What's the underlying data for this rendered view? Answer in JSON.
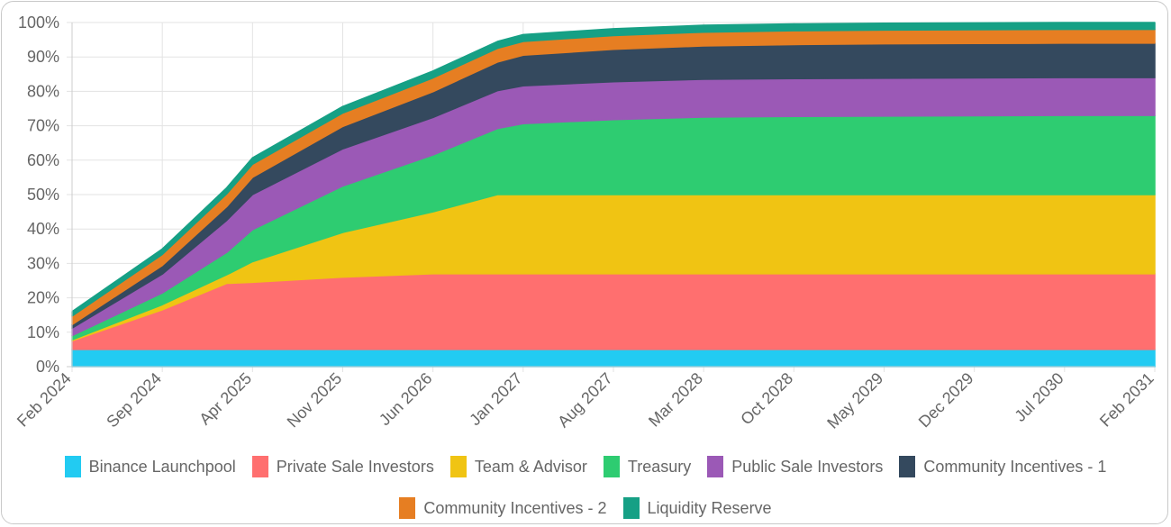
{
  "chart_data": {
    "type": "area",
    "stacked": true,
    "y_unit": "%",
    "ylim": [
      0,
      100
    ],
    "y_ticks": [
      "0%",
      "10%",
      "20%",
      "30%",
      "40%",
      "50%",
      "60%",
      "70%",
      "80%",
      "90%",
      "100%"
    ],
    "x_ticks": [
      "Feb 2024",
      "Sep 2024",
      "Apr 2025",
      "Nov 2025",
      "Jun 2026",
      "Jan 2027",
      "Aug 2027",
      "Mar 2028",
      "Oct 2028",
      "May 2029",
      "Dec 2029",
      "Jul 2030",
      "Feb 2031"
    ],
    "x": [
      "Feb 2024",
      "Sep 2024",
      "Feb 2025",
      "Apr 2025",
      "Nov 2025",
      "Jun 2026",
      "Nov 2026",
      "Jan 2027",
      "Aug 2027",
      "Mar 2028",
      "Oct 2028",
      "May 2029",
      "Dec 2029",
      "Jul 2030",
      "Feb 2031"
    ],
    "grid": true,
    "legend_position": "bottom",
    "series": [
      {
        "name": "Binance Launchpool",
        "color": "#22cbf2",
        "values": [
          5,
          5,
          5,
          5,
          5,
          5,
          5,
          5,
          5,
          5,
          5,
          5,
          5,
          5,
          5
        ]
      },
      {
        "name": "Private Sale Investors",
        "color": "#ff6f6f",
        "values": [
          2.5,
          11.5,
          19.2,
          19.5,
          21,
          22,
          22,
          22,
          22,
          22,
          22,
          22,
          22,
          22,
          22
        ]
      },
      {
        "name": "Team & Advisor",
        "color": "#f0c413",
        "values": [
          0.3,
          1.5,
          2.5,
          6,
          13,
          18,
          23,
          23,
          23,
          23,
          23,
          23,
          23,
          23,
          23
        ]
      },
      {
        "name": "Treasury",
        "color": "#2ecc71",
        "values": [
          1.2,
          3.4,
          6.5,
          9.3,
          13.5,
          16.5,
          19.2,
          20.6,
          21.8,
          22.5,
          22.7,
          22.8,
          22.9,
          23,
          23
        ]
      },
      {
        "name": "Public Sale Investors",
        "color": "#9b59b6",
        "values": [
          2.2,
          5.5,
          9.3,
          10.2,
          10.8,
          10.9,
          11,
          11,
          11,
          11,
          11,
          11,
          11,
          11,
          11
        ]
      },
      {
        "name": "Community Incentives - 1",
        "color": "#34495e",
        "values": [
          1,
          2.5,
          4,
          5,
          6.5,
          7.5,
          8.3,
          8.9,
          9.4,
          9.7,
          9.9,
          10,
          10,
          10,
          10
        ]
      },
      {
        "name": "Community Incentives - 2",
        "color": "#e67e22",
        "values": [
          2.5,
          3.2,
          3.7,
          3.8,
          3.9,
          4,
          4,
          4,
          4,
          4,
          4,
          4,
          4,
          4,
          4
        ]
      },
      {
        "name": "Liquidity Reserve",
        "color": "#16a085",
        "values": [
          1.3,
          1.6,
          1.8,
          1.9,
          1.9,
          2,
          2,
          2,
          2,
          2,
          2,
          2,
          2,
          2,
          2
        ]
      }
    ]
  }
}
